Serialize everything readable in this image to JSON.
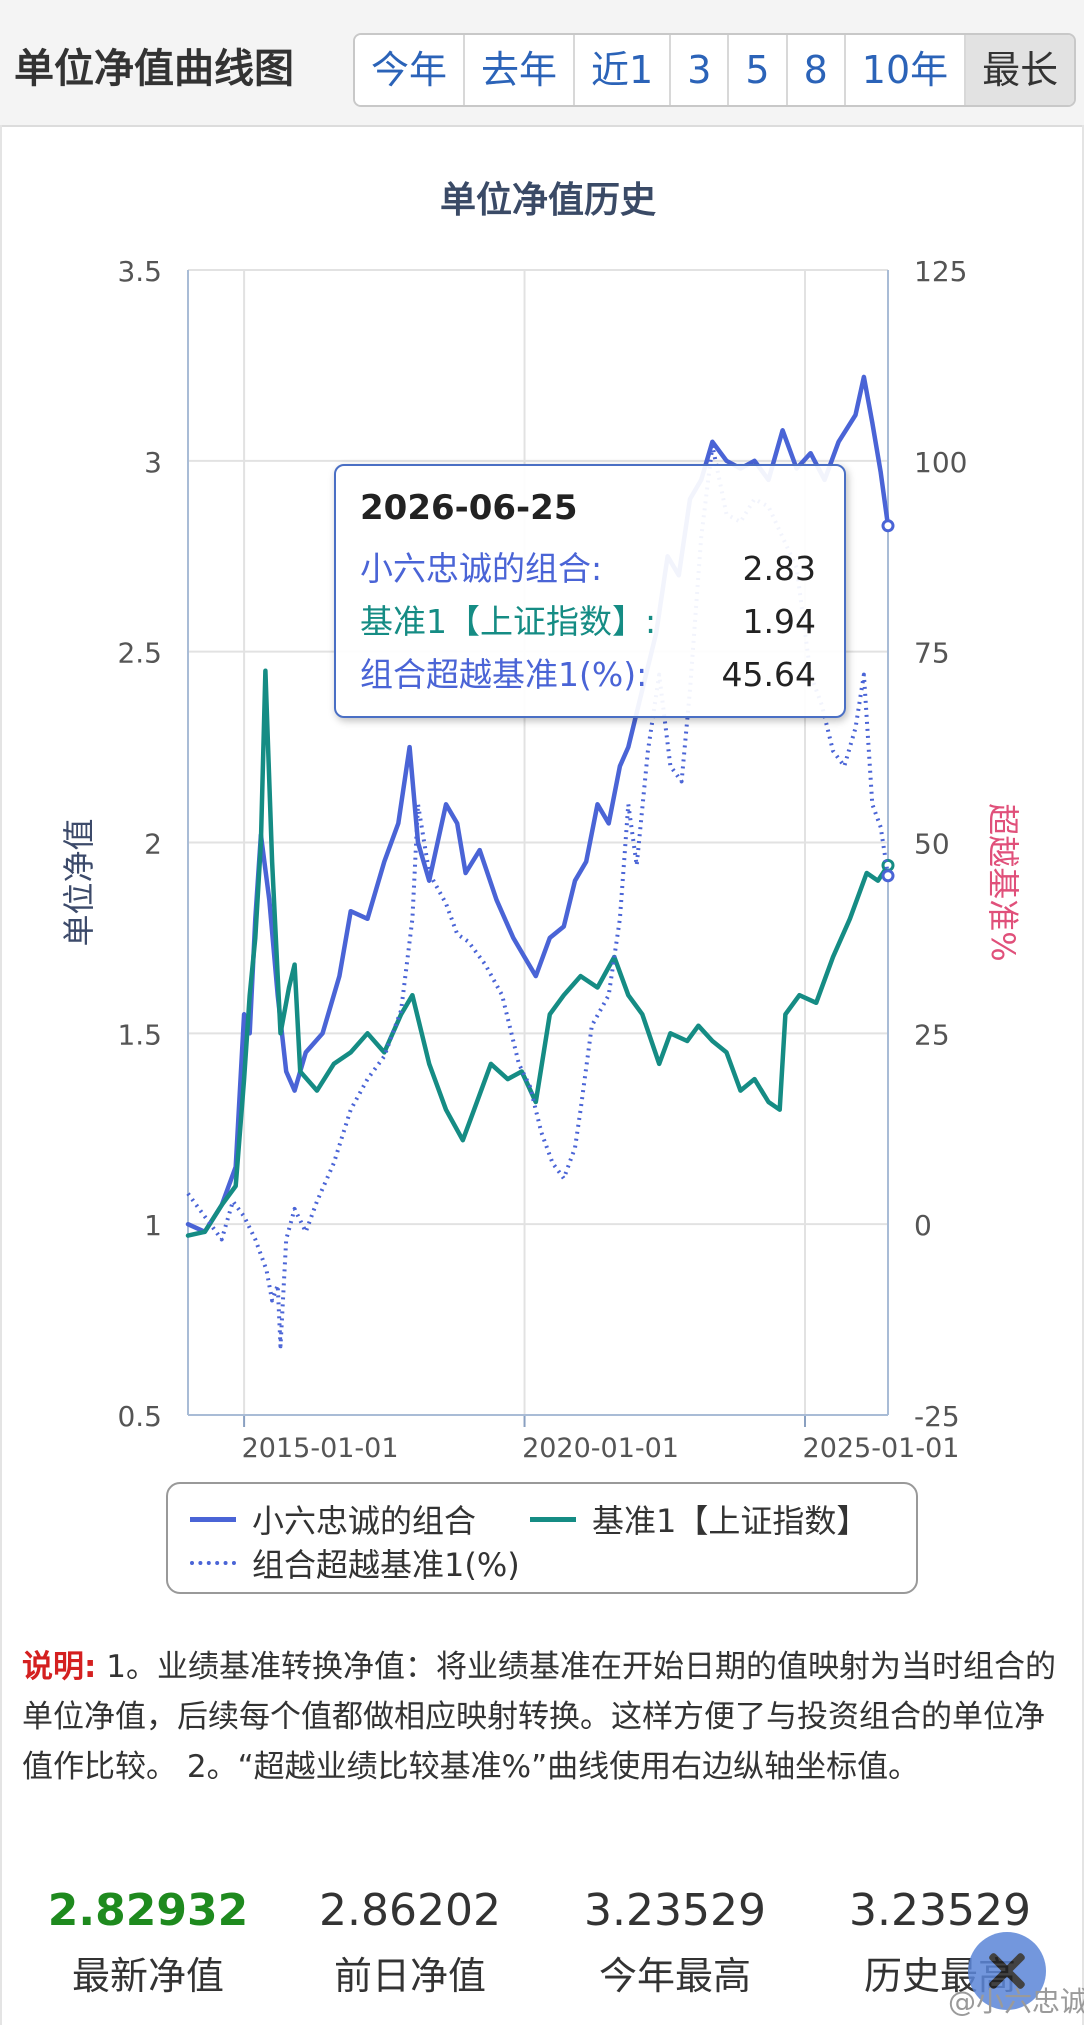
{
  "header": {
    "title": "单位净值曲线图",
    "ranges": [
      "今年",
      "去年",
      "近1",
      "3",
      "5",
      "8",
      "10年",
      "最长"
    ],
    "active_range": "最长"
  },
  "chart_data": {
    "type": "line",
    "title": "单位净值历史",
    "ylabel": "单位净值",
    "y2label": "超越基准%",
    "ylim": [
      0.5,
      3.5
    ],
    "y2lim": [
      -25,
      125
    ],
    "yticks": [
      "0.5",
      "1",
      "1.5",
      "2",
      "2.5",
      "3",
      "3.5"
    ],
    "y2ticks": [
      "-25",
      "0",
      "25",
      "50",
      "75",
      "100",
      "125"
    ],
    "xrange": [
      2014.0,
      2026.48
    ],
    "xticks": [
      {
        "label": "2015-01-01",
        "value": 2015.0
      },
      {
        "label": "2020-01-01",
        "value": 2020.0
      },
      {
        "label": "2025-01-01",
        "value": 2025.0
      }
    ],
    "grid": true,
    "legend_position": "bottom",
    "series": [
      {
        "name": "小六忠诚的组合",
        "axis": "left",
        "color": "#4a64d6",
        "style": "solid",
        "points": [
          [
            2014.0,
            1.0
          ],
          [
            2014.3,
            0.98
          ],
          [
            2014.6,
            1.05
          ],
          [
            2014.85,
            1.15
          ],
          [
            2015.0,
            1.55
          ],
          [
            2015.1,
            1.5
          ],
          [
            2015.2,
            1.8
          ],
          [
            2015.3,
            2.02
          ],
          [
            2015.45,
            1.85
          ],
          [
            2015.6,
            1.6
          ],
          [
            2015.75,
            1.4
          ],
          [
            2015.9,
            1.35
          ],
          [
            2016.1,
            1.45
          ],
          [
            2016.4,
            1.5
          ],
          [
            2016.7,
            1.65
          ],
          [
            2016.9,
            1.82
          ],
          [
            2017.2,
            1.8
          ],
          [
            2017.5,
            1.95
          ],
          [
            2017.75,
            2.05
          ],
          [
            2017.95,
            2.25
          ],
          [
            2018.1,
            2.0
          ],
          [
            2018.3,
            1.9
          ],
          [
            2018.6,
            2.1
          ],
          [
            2018.8,
            2.05
          ],
          [
            2018.95,
            1.92
          ],
          [
            2019.2,
            1.98
          ],
          [
            2019.5,
            1.85
          ],
          [
            2019.8,
            1.75
          ],
          [
            2020.0,
            1.7
          ],
          [
            2020.2,
            1.65
          ],
          [
            2020.45,
            1.75
          ],
          [
            2020.7,
            1.78
          ],
          [
            2020.9,
            1.9
          ],
          [
            2021.1,
            1.95
          ],
          [
            2021.3,
            2.1
          ],
          [
            2021.5,
            2.05
          ],
          [
            2021.7,
            2.2
          ],
          [
            2021.85,
            2.25
          ],
          [
            2022.1,
            2.4
          ],
          [
            2022.35,
            2.55
          ],
          [
            2022.55,
            2.75
          ],
          [
            2022.75,
            2.7
          ],
          [
            2022.95,
            2.9
          ],
          [
            2023.15,
            2.95
          ],
          [
            2023.35,
            3.05
          ],
          [
            2023.6,
            3.0
          ],
          [
            2023.85,
            2.98
          ],
          [
            2024.1,
            3.0
          ],
          [
            2024.35,
            2.95
          ],
          [
            2024.6,
            3.08
          ],
          [
            2024.85,
            2.98
          ],
          [
            2025.1,
            3.02
          ],
          [
            2025.35,
            2.95
          ],
          [
            2025.6,
            3.05
          ],
          [
            2025.9,
            3.12
          ],
          [
            2026.05,
            3.22
          ],
          [
            2026.2,
            3.1
          ],
          [
            2026.35,
            2.97
          ],
          [
            2026.48,
            2.83
          ]
        ]
      },
      {
        "name": "基准1【上证指数】",
        "axis": "left",
        "color": "#158c84",
        "style": "solid",
        "points": [
          [
            2014.0,
            0.97
          ],
          [
            2014.3,
            0.98
          ],
          [
            2014.6,
            1.05
          ],
          [
            2014.85,
            1.1
          ],
          [
            2015.0,
            1.38
          ],
          [
            2015.1,
            1.6
          ],
          [
            2015.2,
            1.75
          ],
          [
            2015.3,
            2.0
          ],
          [
            2015.38,
            2.45
          ],
          [
            2015.5,
            1.95
          ],
          [
            2015.65,
            1.5
          ],
          [
            2015.8,
            1.62
          ],
          [
            2015.9,
            1.68
          ],
          [
            2016.0,
            1.4
          ],
          [
            2016.3,
            1.35
          ],
          [
            2016.6,
            1.42
          ],
          [
            2016.9,
            1.45
          ],
          [
            2017.2,
            1.5
          ],
          [
            2017.5,
            1.45
          ],
          [
            2017.8,
            1.55
          ],
          [
            2018.0,
            1.6
          ],
          [
            2018.3,
            1.42
          ],
          [
            2018.6,
            1.3
          ],
          [
            2018.9,
            1.22
          ],
          [
            2019.1,
            1.3
          ],
          [
            2019.4,
            1.42
          ],
          [
            2019.7,
            1.38
          ],
          [
            2019.95,
            1.4
          ],
          [
            2020.2,
            1.32
          ],
          [
            2020.45,
            1.55
          ],
          [
            2020.7,
            1.6
          ],
          [
            2021.0,
            1.65
          ],
          [
            2021.3,
            1.62
          ],
          [
            2021.6,
            1.7
          ],
          [
            2021.85,
            1.6
          ],
          [
            2022.1,
            1.55
          ],
          [
            2022.4,
            1.42
          ],
          [
            2022.6,
            1.5
          ],
          [
            2022.9,
            1.48
          ],
          [
            2023.1,
            1.52
          ],
          [
            2023.35,
            1.48
          ],
          [
            2023.6,
            1.45
          ],
          [
            2023.85,
            1.35
          ],
          [
            2024.1,
            1.38
          ],
          [
            2024.35,
            1.32
          ],
          [
            2024.55,
            1.3
          ],
          [
            2024.65,
            1.55
          ],
          [
            2024.9,
            1.6
          ],
          [
            2025.2,
            1.58
          ],
          [
            2025.5,
            1.7
          ],
          [
            2025.8,
            1.8
          ],
          [
            2026.1,
            1.92
          ],
          [
            2026.3,
            1.9
          ],
          [
            2026.48,
            1.94
          ]
        ]
      },
      {
        "name": "组合超越基准1(%)",
        "axis": "right",
        "color": "#4a64d6",
        "style": "dotted",
        "points": [
          [
            2014.0,
            4
          ],
          [
            2014.2,
            2
          ],
          [
            2014.4,
            0
          ],
          [
            2014.6,
            -2
          ],
          [
            2014.8,
            3
          ],
          [
            2015.0,
            1
          ],
          [
            2015.2,
            -2
          ],
          [
            2015.4,
            -6
          ],
          [
            2015.5,
            -10
          ],
          [
            2015.6,
            -8
          ],
          [
            2015.65,
            -16
          ],
          [
            2015.75,
            -2
          ],
          [
            2015.9,
            2
          ],
          [
            2016.1,
            -1
          ],
          [
            2016.3,
            3
          ],
          [
            2016.6,
            8
          ],
          [
            2016.9,
            15
          ],
          [
            2017.2,
            19
          ],
          [
            2017.5,
            22
          ],
          [
            2017.8,
            28
          ],
          [
            2018.0,
            40
          ],
          [
            2018.1,
            55
          ],
          [
            2018.3,
            46
          ],
          [
            2018.6,
            42
          ],
          [
            2018.8,
            38
          ],
          [
            2019.0,
            37
          ],
          [
            2019.3,
            34
          ],
          [
            2019.6,
            30
          ],
          [
            2019.9,
            21
          ],
          [
            2020.1,
            18
          ],
          [
            2020.3,
            12
          ],
          [
            2020.5,
            8
          ],
          [
            2020.7,
            6
          ],
          [
            2020.9,
            10
          ],
          [
            2021.0,
            15
          ],
          [
            2021.2,
            26
          ],
          [
            2021.5,
            30
          ],
          [
            2021.7,
            40
          ],
          [
            2021.85,
            55
          ],
          [
            2022.0,
            47
          ],
          [
            2022.2,
            62
          ],
          [
            2022.4,
            72
          ],
          [
            2022.6,
            60
          ],
          [
            2022.8,
            58
          ],
          [
            2022.95,
            70
          ],
          [
            2023.15,
            90
          ],
          [
            2023.35,
            102
          ],
          [
            2023.6,
            93
          ],
          [
            2023.85,
            92
          ],
          [
            2024.1,
            95
          ],
          [
            2024.35,
            94
          ],
          [
            2024.6,
            90
          ],
          [
            2024.85,
            86
          ],
          [
            2025.1,
            72
          ],
          [
            2025.3,
            68
          ],
          [
            2025.5,
            62
          ],
          [
            2025.7,
            60
          ],
          [
            2025.9,
            65
          ],
          [
            2026.05,
            72
          ],
          [
            2026.2,
            55
          ],
          [
            2026.35,
            52
          ],
          [
            2026.48,
            45.64
          ]
        ]
      }
    ]
  },
  "tooltip": {
    "date": "2026-06-25",
    "rows": [
      {
        "label": "小六忠诚的组合:",
        "value": "2.83",
        "color": "#4a64d6"
      },
      {
        "label": "基准1【上证指数】:",
        "value": "1.94",
        "color": "#158c84"
      },
      {
        "label": "组合超越基准1(%):",
        "value": "45.64",
        "color": "#4a64d6"
      }
    ]
  },
  "legend": {
    "items": [
      "小六忠诚的组合",
      "基准1【上证指数】",
      "组合超越基准1(%)"
    ]
  },
  "note": {
    "label": "说明:",
    "text": " 1。业绩基准转换净值：将业绩基准在开始日期的值映射为当时组合的单位净值，后续每个值都做相应映射转换。这样方便了与投资组合的单位净值作比较。 2。“超越业绩比较基准%”曲线使用右边纵轴坐标值。"
  },
  "stats": [
    {
      "value": "2.82932",
      "label": "最新净值"
    },
    {
      "value": "2.86202",
      "label": "前日净值"
    },
    {
      "value": "3.23529",
      "label": "今年最高"
    },
    {
      "value": "3.23529",
      "label": "历史最高"
    }
  ],
  "colors": {
    "portfolio": "#4a64d6",
    "benchmark": "#158c84",
    "latest_value": "#1e8a1e",
    "note_label": "#d42020",
    "right_axis_label": "#e0507a",
    "left_axis_label": "#3c4a6a"
  },
  "watermark": "@小六忠诚"
}
